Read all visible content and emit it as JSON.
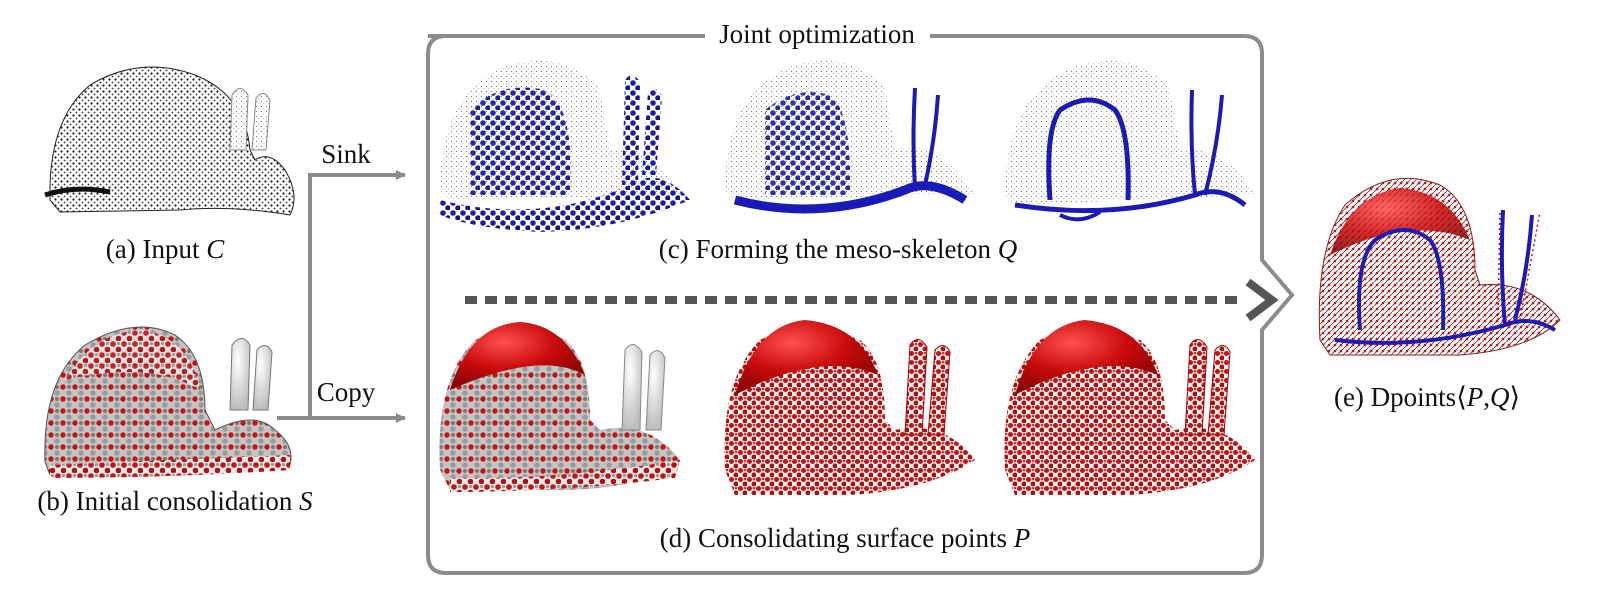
{
  "frame": {
    "title": "Joint optimization"
  },
  "arrows": {
    "sink_label": "Sink",
    "copy_label": "Copy"
  },
  "panels": {
    "a": {
      "caption": "(a) Input ",
      "symbol": "C"
    },
    "b": {
      "caption": "(b) Initial consolidation ",
      "symbol": "S"
    },
    "c": {
      "caption": "(c) Forming the meso-skeleton ",
      "symbol": "Q"
    },
    "d": {
      "caption": "(d) Consolidating surface points ",
      "symbol": "P"
    },
    "e": {
      "caption": "(e) Dpoints",
      "symbol_open": "⟨",
      "symbol_p": "P",
      "symbol_sep": ",",
      "symbol_q": "Q",
      "symbol_close": "⟩"
    }
  },
  "colors": {
    "frame": "#8c8c8c",
    "arrow": "#8c8c8c",
    "dotted_arrow": "#555555",
    "input_points": "#1a1a1a",
    "surface_red": "#cc1010",
    "surface_grey": "#b5b5b5",
    "skeleton_blue": "#1a1ab8"
  }
}
